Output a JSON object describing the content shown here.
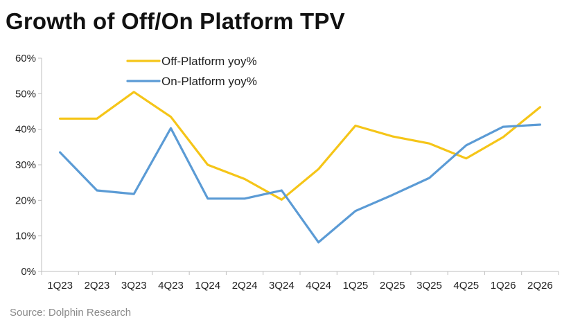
{
  "title": "Growth of Off/On Platform TPV",
  "source": "Source: Dolphin Research",
  "chart_data": {
    "type": "line",
    "categories": [
      "1Q23",
      "2Q23",
      "3Q23",
      "4Q23",
      "1Q24",
      "2Q24",
      "3Q24",
      "4Q24",
      "1Q25",
      "2Q25",
      "3Q25",
      "4Q25",
      "1Q26",
      "2Q26"
    ],
    "ylim": [
      0,
      60
    ],
    "yticks": [
      "0%",
      "10%",
      "20%",
      "30%",
      "40%",
      "50%",
      "60%"
    ],
    "legend_position": "top-left",
    "grid": false,
    "series": [
      {
        "name": "Off-Platform yoy%",
        "color": "#f5c518",
        "values": [
          43.0,
          43.0,
          50.5,
          43.5,
          30.0,
          26.0,
          20.2,
          28.8,
          41.0,
          38.0,
          36.0,
          31.8,
          37.8,
          46.2
        ]
      },
      {
        "name": "On-Platform yoy%",
        "color": "#5b9bd5",
        "values": [
          33.5,
          22.8,
          21.8,
          40.3,
          20.5,
          20.5,
          22.8,
          8.2,
          17.0,
          21.5,
          26.3,
          35.5,
          40.7,
          41.3
        ]
      }
    ]
  }
}
